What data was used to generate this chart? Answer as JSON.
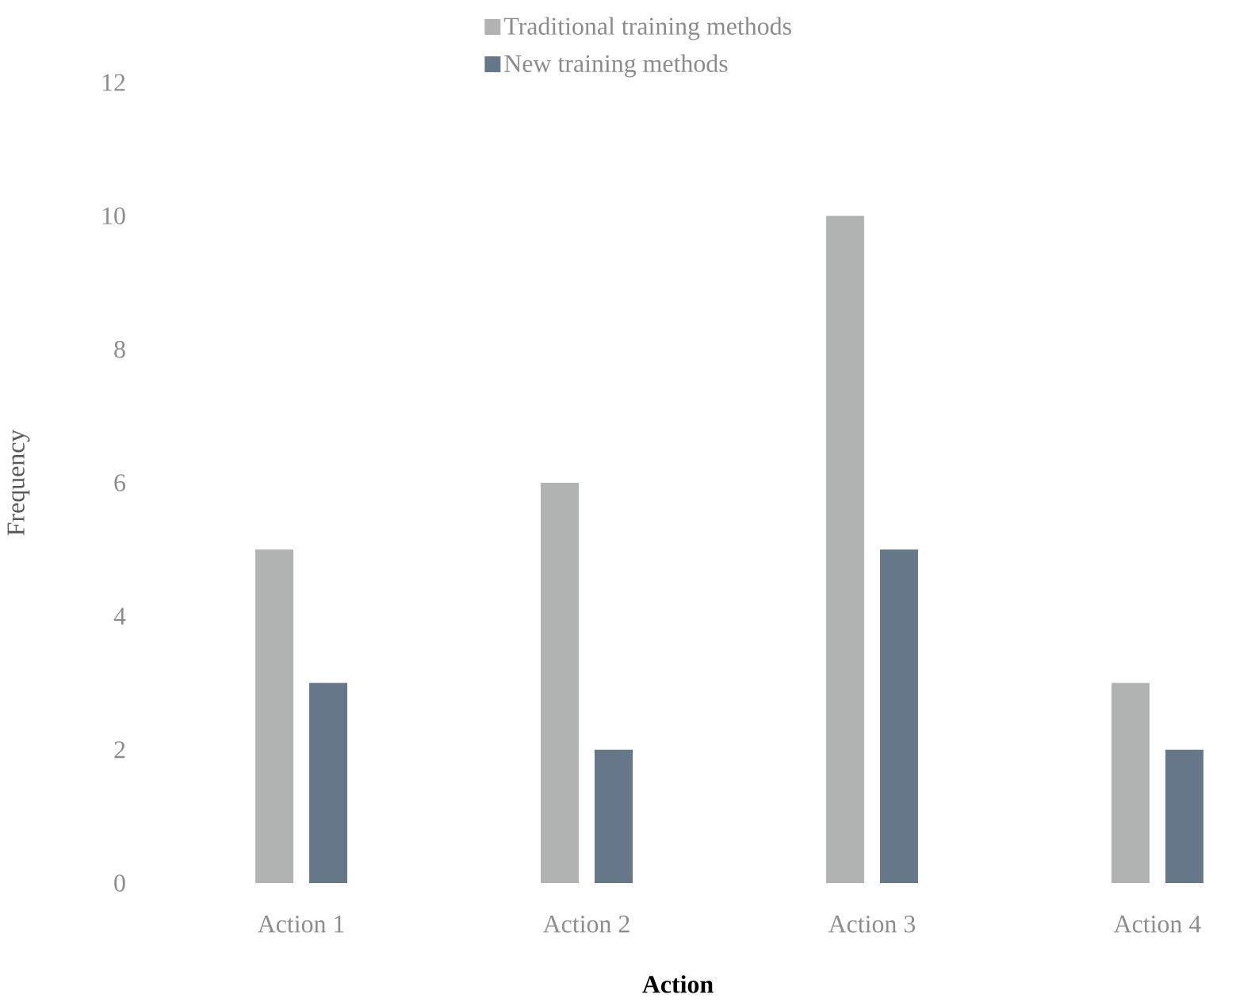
{
  "chart_data": {
    "type": "bar",
    "xlabel": "Action",
    "ylabel": "Frequency",
    "categories": [
      "Action 1",
      "Action 2",
      "Action 3",
      "Action 4"
    ],
    "series": [
      {
        "name": "Traditional training methods",
        "color": "#b1b3b3",
        "values": [
          5,
          6,
          10,
          3
        ]
      },
      {
        "name": "New training methods",
        "color": "#66778a",
        "values": [
          3,
          2,
          5,
          2
        ]
      }
    ],
    "ylim": [
      0,
      12
    ],
    "yticks": [
      0,
      2,
      4,
      6,
      8,
      10,
      12
    ],
    "legend": "top"
  }
}
